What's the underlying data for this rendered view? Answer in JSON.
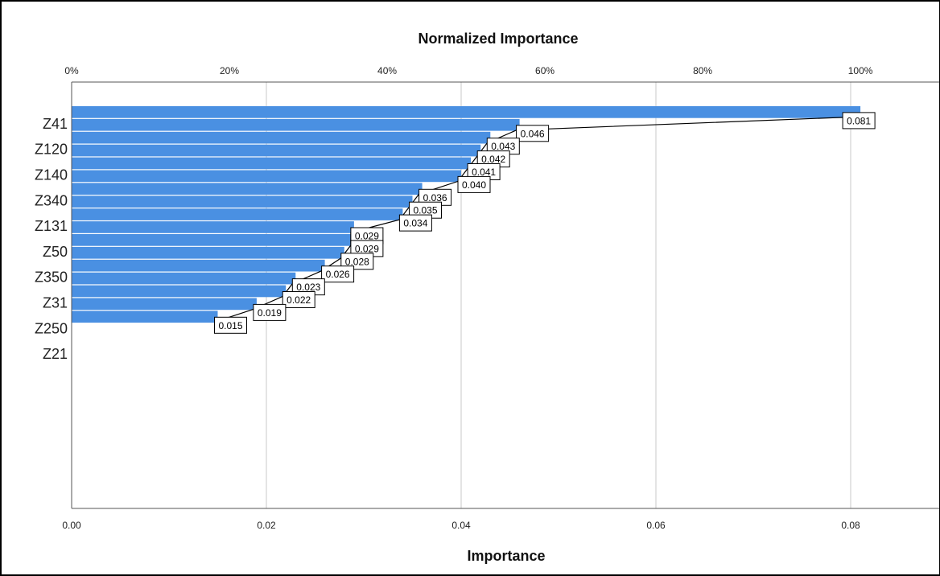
{
  "chart_data": {
    "type": "bar",
    "orientation": "horizontal",
    "title_top": "Normalized Importance",
    "xlabel": "Importance",
    "ylabel": "",
    "xlim": [
      0,
      0.09
    ],
    "x_ticks": [
      "0.00",
      "0.02",
      "0.04",
      "0.06",
      "0.08"
    ],
    "top_ticks": [
      "0%",
      "20%",
      "40%",
      "60%",
      "80%",
      "100%"
    ],
    "category_labels": [
      "",
      "Z41",
      "Z120",
      "Z140",
      "Z340",
      "Z131",
      "Z50",
      "Z350",
      "Z31",
      "Z250",
      "Z21"
    ],
    "values": [
      0.081,
      0.046,
      0.043,
      0.042,
      0.041,
      0.04,
      0.036,
      0.035,
      0.034,
      0.029,
      0.029,
      0.028,
      0.026,
      0.023,
      0.022,
      0.019,
      0.015
    ],
    "value_labels": [
      "0.081",
      "0.046",
      "0.043",
      "0.042",
      "0.041",
      "0.040",
      "0.036",
      "0.035",
      "0.034",
      "0.029",
      "0.029",
      "0.028",
      "0.026",
      "0.023",
      "0.022",
      "0.019",
      "0.015"
    ],
    "grid": true,
    "colors": {
      "bar": "#4a90e2",
      "grid": "#c8c8c8",
      "bar_sep": "#ffffff"
    }
  }
}
